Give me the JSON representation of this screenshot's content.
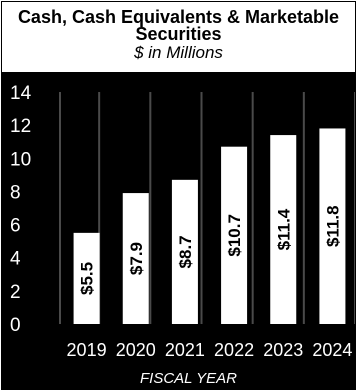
{
  "chart_data": {
    "type": "bar",
    "title": "Cash, Cash Equivalents & Marketable Securities",
    "subtitle": "$ in Millions",
    "xlabel": "FISCAL YEAR",
    "ylabel": "",
    "ylim": [
      0,
      14
    ],
    "yticks": [
      0,
      2,
      4,
      6,
      8,
      10,
      12,
      14
    ],
    "categories": [
      "2019",
      "2020",
      "2021",
      "2022",
      "2023",
      "2024"
    ],
    "values": [
      5.5,
      7.9,
      8.7,
      10.7,
      11.4,
      11.8
    ],
    "data_labels": [
      "$5.5",
      "$7.9",
      "$8.7",
      "$10.7",
      "$11.4",
      "$11.8"
    ],
    "grid": "vertical separators",
    "legend": "none",
    "colors": {
      "background": "#000000",
      "bar": "#ffffff",
      "text": "#ffffff",
      "header_bg": "#ffffff"
    }
  }
}
